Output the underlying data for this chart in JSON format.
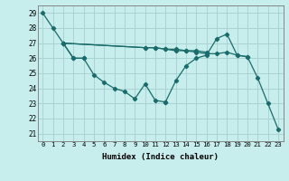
{
  "xlabel": "Humidex (Indice chaleur)",
  "bg_color": "#c8eded",
  "grid_color": "#aad4d4",
  "line_color": "#1a6b6b",
  "xlim": [
    -0.5,
    23.5
  ],
  "ylim": [
    20.5,
    29.5
  ],
  "xticks": [
    0,
    1,
    2,
    3,
    4,
    5,
    6,
    7,
    8,
    9,
    10,
    11,
    12,
    13,
    14,
    15,
    16,
    17,
    18,
    19,
    20,
    21,
    22,
    23
  ],
  "yticks": [
    21,
    22,
    23,
    24,
    25,
    26,
    27,
    28,
    29
  ],
  "series": [
    {
      "x": [
        0,
        1,
        2,
        3,
        4,
        5,
        6,
        7,
        8,
        9,
        10,
        11,
        12
      ],
      "y": [
        29,
        28,
        27,
        26,
        26,
        24.9,
        24.4,
        24.0,
        23.8,
        23.3,
        24.3,
        23.2,
        23.1
      ]
    },
    {
      "x": [
        2,
        3,
        4
      ],
      "y": [
        27,
        26,
        26
      ]
    },
    {
      "x": [
        2,
        10,
        11,
        12,
        13,
        14,
        15,
        16
      ],
      "y": [
        27,
        26.7,
        26.7,
        26.6,
        26.6,
        26.5,
        26.5,
        26.4
      ]
    },
    {
      "x": [
        12,
        13,
        14,
        15,
        16,
        17,
        18,
        19,
        20,
        21,
        22,
        23
      ],
      "y": [
        23.1,
        24.5,
        25.5,
        26.0,
        26.2,
        27.3,
        27.6,
        26.2,
        26.1,
        24.7,
        23.0,
        21.3
      ]
    },
    {
      "x": [
        2,
        10,
        11,
        12,
        13,
        14,
        15,
        16,
        17,
        18,
        19,
        20
      ],
      "y": [
        27,
        26.7,
        26.7,
        26.6,
        26.5,
        26.5,
        26.4,
        26.3,
        26.3,
        26.4,
        26.2,
        26.1
      ]
    }
  ]
}
